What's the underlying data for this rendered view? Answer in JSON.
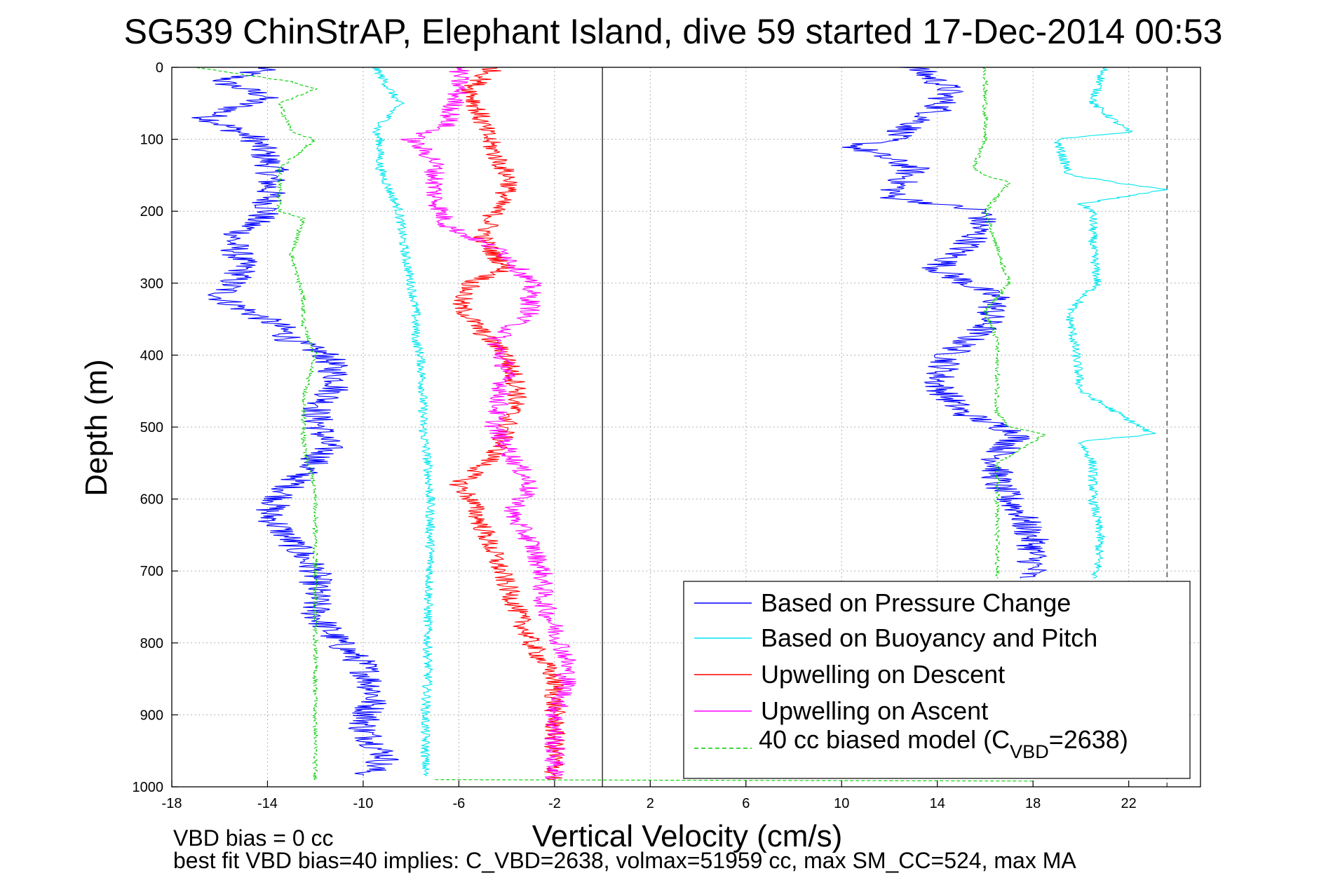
{
  "chart_data": {
    "type": "line",
    "title": "SG539 ChinStrAP, Elephant Island, dive 59 started 17-Dec-2014 00:53",
    "xlabel": "Vertical Velocity (cm/s)",
    "ylabel": "Depth (m)",
    "xlim": [
      -18,
      25
    ],
    "ylim": [
      1000,
      0
    ],
    "y_reversed": true,
    "grid": true,
    "xticks": [
      "-18",
      "-14",
      "-10",
      "-6",
      "-2",
      "2",
      "6",
      "10",
      "14",
      "18",
      "22"
    ],
    "yticks": [
      "0",
      "100",
      "200",
      "300",
      "400",
      "500",
      "600",
      "700",
      "800",
      "900",
      "1000"
    ],
    "legend": {
      "placement": "bottom-right",
      "entries": [
        {
          "label": "Based on Pressure Change",
          "color": "#0000ff",
          "dashed": false
        },
        {
          "label": "Based on Buoyancy and Pitch",
          "color": "#00e5ee",
          "dashed": false
        },
        {
          "label": "Upwelling on Descent",
          "color": "#ff0000",
          "dashed": false
        },
        {
          "label": "Upwelling on Ascent",
          "color": "#ff00ff",
          "dashed": false
        },
        {
          "label": "40 cc biased model (C",
          "sub": "VBD",
          "suffix": "=2638)",
          "color": "#00cc00",
          "dashed": true
        }
      ]
    },
    "notes": [
      "VBD bias = 0 cc",
      "best fit VBD bias=40 implies: C_VBD=2638, volmax=51959 cc, max SM_CC=524, max MA"
    ],
    "series": [
      {
        "name": "Based on Pressure Change",
        "color": "#0000ff",
        "segments": [
          {
            "depth": [
              0,
              20,
              40,
              70,
              100,
              140,
              200,
              240,
              280,
              320,
              360,
              380,
              400,
              440,
              480,
              530,
              580,
              620,
              660,
              700,
              760,
              800,
              830,
              870,
              920,
              960,
              985
            ],
            "values": [
              -14,
              -16,
              -14,
              -16.5,
              -14.5,
              -13.8,
              -14,
              -15.5,
              -15,
              -16,
              -13.5,
              -13,
              -11.5,
              -11,
              -12,
              -11.5,
              -13,
              -14,
              -13,
              -12,
              -12,
              -11,
              -10,
              -9.5,
              -10,
              -9,
              -10
            ]
          },
          {
            "depth": [
              0,
              30,
              60,
              100,
              110,
              140,
              180,
              200,
              240,
              280,
              320,
              360,
              400,
              440,
              480,
              510,
              540,
              580,
              620,
              660,
              700,
              710
            ],
            "values": [
              13,
              14.5,
              14,
              12,
              10.5,
              13,
              12,
              16,
              15.5,
              14,
              16.5,
              16,
              14.5,
              14,
              15,
              17.5,
              16.5,
              16.5,
              17.5,
              18,
              18,
              17.5
            ]
          }
        ]
      },
      {
        "name": "Based on Buoyancy and Pitch",
        "color": "#00e5ee",
        "segments": [
          {
            "depth": [
              0,
              50,
              90,
              100,
              140,
              200,
              250,
              300,
              340,
              380,
              400,
              450,
              500,
              550,
              600,
              650,
              700,
              760,
              800,
              850,
              900,
              950,
              985
            ],
            "values": [
              -9.5,
              -8.5,
              -9.5,
              -9.3,
              -9.3,
              -8.5,
              -8.3,
              -8,
              -7.8,
              -7.8,
              -7.6,
              -7.5,
              -7.5,
              -7.3,
              -7.2,
              -7.2,
              -7.2,
              -7.3,
              -7.3,
              -7.3,
              -7.4,
              -7.4,
              -7.4
            ]
          },
          {
            "depth": [
              0,
              50,
              90,
              100,
              150,
              170,
              190,
              200,
              250,
              300,
              340,
              400,
              450,
              510,
              520,
              550,
              600,
              650,
              700,
              710
            ],
            "values": [
              21,
              20.5,
              22,
              19,
              19.5,
              23.5,
              20,
              20.5,
              20.5,
              20.7,
              19.5,
              19.8,
              20,
              23,
              20,
              20.5,
              20.5,
              20.8,
              20.7,
              20.5
            ]
          }
        ]
      },
      {
        "name": "Upwelling on Descent",
        "color": "#ff0000",
        "segments": [
          {
            "depth": [
              0,
              30,
              80,
              120,
              160,
              200,
              240,
              280,
              300,
              330,
              370,
              400,
              450,
              500,
              540,
              580,
              600,
              640,
              680,
              720,
              760,
              800,
              850,
              900,
              950,
              990
            ],
            "values": [
              -4.5,
              -5.5,
              -5,
              -4.5,
              -3.8,
              -4.5,
              -5,
              -4,
              -5.5,
              -6,
              -5,
              -4,
              -3.5,
              -4,
              -4.5,
              -6,
              -5.5,
              -5,
              -4.5,
              -4,
              -3.5,
              -3,
              -2,
              -2,
              -2,
              -2
            ]
          }
        ]
      },
      {
        "name": "Upwelling on Ascent",
        "color": "#ff00ff",
        "segments": [
          {
            "depth": [
              0,
              30,
              80,
              100,
              130,
              180,
              220,
              260,
              300,
              340,
              380,
              420,
              460,
              500,
              540,
              580,
              620,
              660,
              700,
              740,
              780,
              820,
              860,
              900,
              950,
              990
            ],
            "values": [
              -6,
              -6,
              -6.5,
              -8,
              -7,
              -7,
              -6.5,
              -4,
              -3,
              -3,
              -4.5,
              -4,
              -4.3,
              -4.5,
              -3.8,
              -3,
              -3.8,
              -3,
              -2.5,
              -2.5,
              -2,
              -1.5,
              -1.5,
              -2,
              -2,
              -2
            ]
          }
        ]
      },
      {
        "name": "40 cc biased model (C_VBD=2638)",
        "color": "#00cc00",
        "dashed": true,
        "segments": [
          {
            "depth": [
              0,
              20,
              30,
              50,
              90,
              100,
              140,
              200,
              210,
              260,
              320,
              360,
              400,
              460,
              520,
              590,
              640,
              700,
              760,
              800,
              850,
              900,
              950,
              990
            ],
            "values": [
              -17,
              -13,
              -12,
              -13.5,
              -13,
              -12,
              -13.5,
              -13.5,
              -12.5,
              -13,
              -12.5,
              -12.5,
              -12,
              -12.5,
              -12.5,
              -12,
              -12,
              -12,
              -12,
              -12,
              -12,
              -12,
              -12,
              -12
            ]
          },
          {
            "depth": [
              0,
              20,
              60,
              100,
              140,
              150,
              160,
              200,
              250,
              300,
              340,
              380,
              420,
              480,
              500,
              510,
              550,
              600,
              650,
              700,
              710
            ],
            "values": [
              16,
              16,
              16,
              16,
              15.5,
              16,
              17,
              16,
              16.5,
              17,
              16,
              16.5,
              16.5,
              16.5,
              17,
              18.5,
              16.5,
              16.5,
              16.5,
              16.5,
              16.5
            ]
          }
        ]
      }
    ]
  }
}
